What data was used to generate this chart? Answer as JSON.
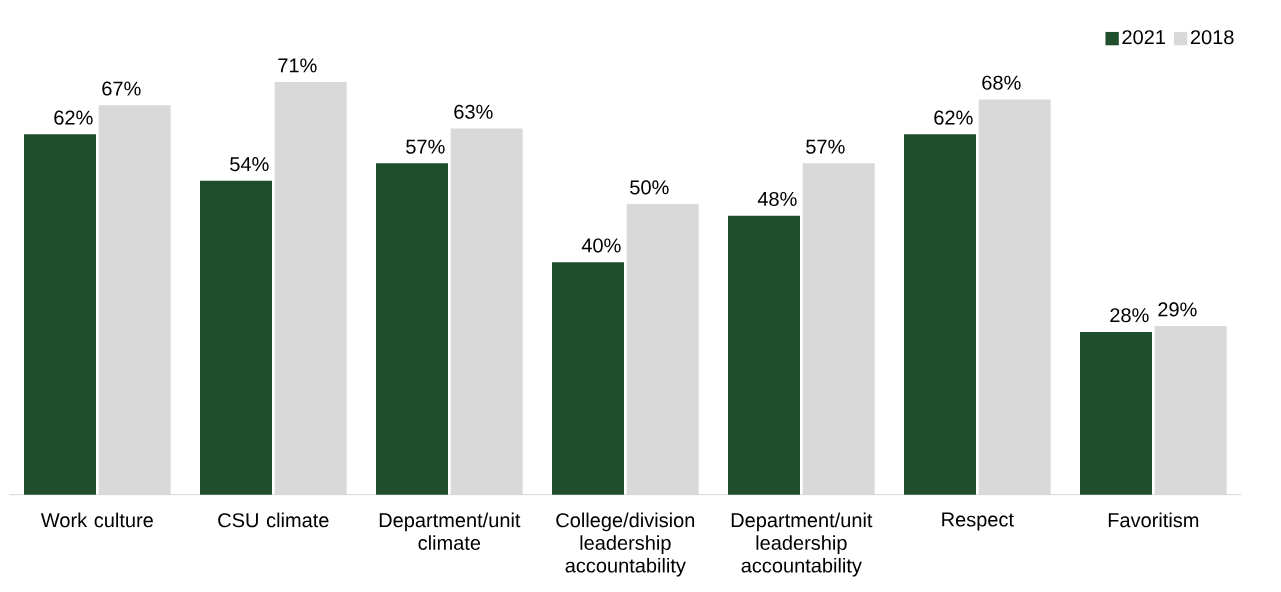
{
  "chart_data": {
    "type": "bar",
    "categories": [
      "Work culture",
      "CSU climate",
      "Department/unit climate",
      "College/division leadership accountability",
      "Department/unit leadership accountability",
      "Respect",
      "Favoritism"
    ],
    "series": [
      {
        "name": "2021",
        "color": "#1f4e2c",
        "values": [
          62,
          54,
          57,
          40,
          48,
          62,
          28
        ],
        "value_labels": [
          "62%",
          "54%",
          "57%",
          "40%",
          "48%",
          "62%",
          "28%"
        ]
      },
      {
        "name": "2018",
        "color": "#d9d9d9",
        "values": [
          67,
          71,
          63,
          50,
          57,
          68,
          29
        ],
        "value_labels": [
          "67%",
          "71%",
          "63%",
          "50%",
          "57%",
          "68%",
          "29%"
        ]
      }
    ],
    "legend": "top right"
  }
}
